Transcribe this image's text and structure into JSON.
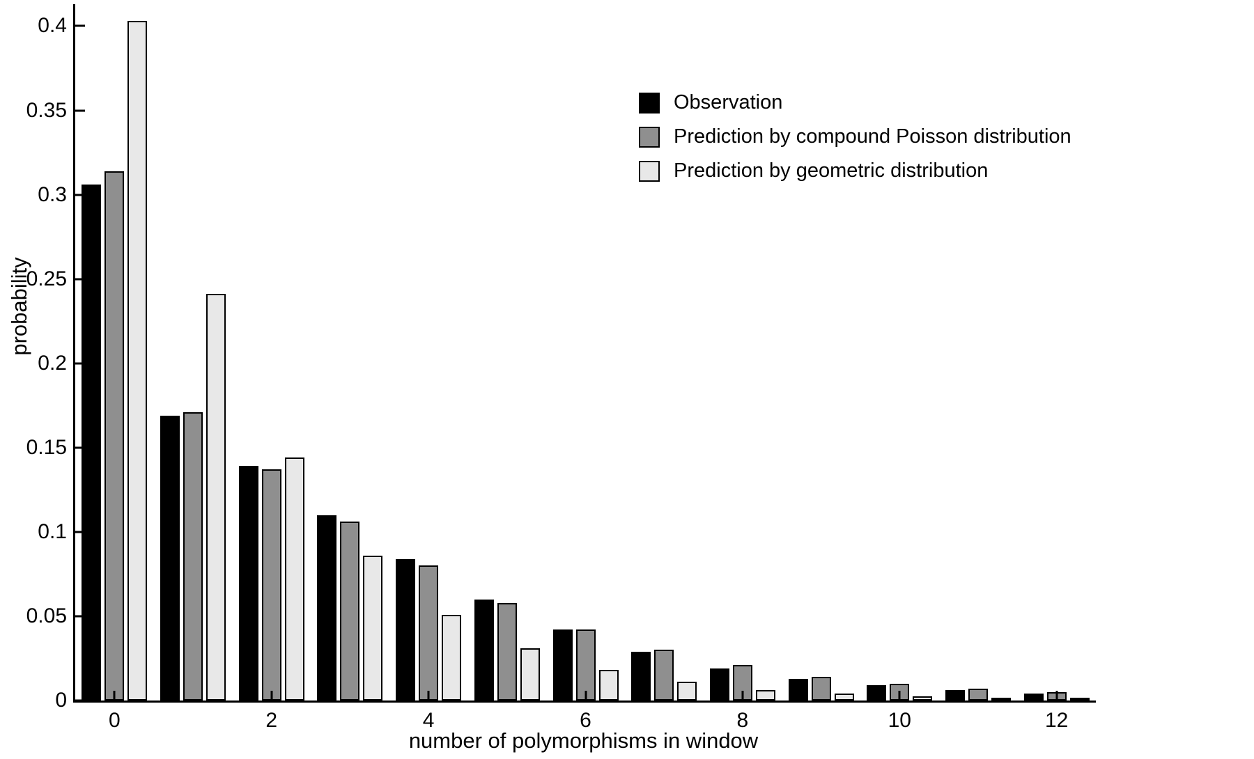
{
  "figure": {
    "background": "#ffffff",
    "axis_color": "#000000",
    "bar_edge_color": "#000000"
  },
  "chart_data": {
    "type": "bar",
    "title": "",
    "xlabel": "number of polymorphisms in window",
    "ylabel": "probability",
    "grid": false,
    "legend_position": "upper-right-inside",
    "categories": [
      0,
      1,
      2,
      3,
      4,
      5,
      6,
      7,
      8,
      9,
      10,
      11,
      12
    ],
    "xlim": [
      -0.5,
      12.5
    ],
    "ylim": [
      0,
      0.413
    ],
    "series": [
      {
        "name": "Observation",
        "color": "#000000",
        "values": [
          0.306,
          0.169,
          0.139,
          0.11,
          0.084,
          0.06,
          0.042,
          0.029,
          0.019,
          0.013,
          0.009,
          0.006,
          0.004
        ]
      },
      {
        "name": "Prediction by compound Poisson distribution",
        "color": "#8f8f8f",
        "values": [
          0.314,
          0.171,
          0.137,
          0.106,
          0.08,
          0.058,
          0.042,
          0.03,
          0.021,
          0.014,
          0.01,
          0.007,
          0.005
        ]
      },
      {
        "name": "Prediction by geometric distribution",
        "color": "#e8e8e8",
        "values": [
          0.403,
          0.241,
          0.144,
          0.086,
          0.051,
          0.031,
          0.018,
          0.011,
          0.006,
          0.004,
          0.0025,
          0.0015,
          0.001
        ]
      }
    ],
    "yticks": [
      {
        "value": 0,
        "label": "0"
      },
      {
        "value": 0.05,
        "label": "0.05"
      },
      {
        "value": 0.1,
        "label": "0.1"
      },
      {
        "value": 0.15,
        "label": "0.15"
      },
      {
        "value": 0.2,
        "label": "0.2"
      },
      {
        "value": 0.25,
        "label": "0.25"
      },
      {
        "value": 0.3,
        "label": "0.3"
      },
      {
        "value": 0.35,
        "label": "0.35"
      },
      {
        "value": 0.4,
        "label": "0.4"
      }
    ],
    "xticks": [
      {
        "value": 0,
        "label": "0"
      },
      {
        "value": 2,
        "label": "2"
      },
      {
        "value": 4,
        "label": "4"
      },
      {
        "value": 6,
        "label": "6"
      },
      {
        "value": 8,
        "label": "8"
      },
      {
        "value": 10,
        "label": "10"
      },
      {
        "value": 12,
        "label": "12"
      }
    ]
  }
}
